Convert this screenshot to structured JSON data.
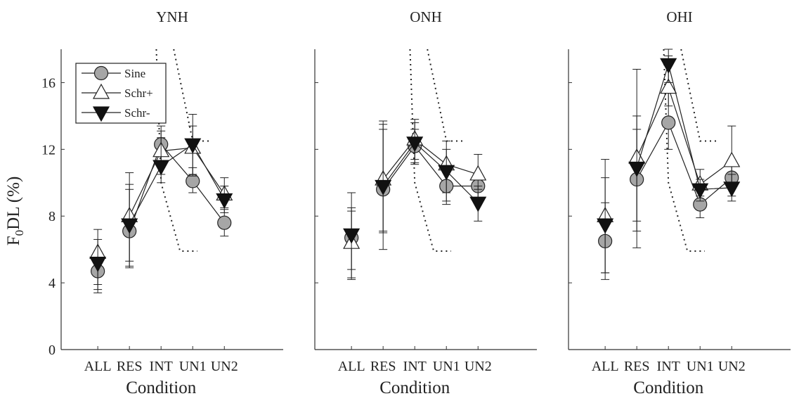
{
  "figure": {
    "ylabel_main": "F",
    "ylabel_sub": "0",
    "ylabel_rest": "DL  (%)"
  },
  "chart_data": [
    {
      "type": "line",
      "title": "YNH",
      "xlabel": "Condition",
      "ylabel": "F0DL (%)",
      "categories": [
        "ALL",
        "RES",
        "INT",
        "UN1",
        "UN2"
      ],
      "ylim": [
        0,
        18
      ],
      "yticks": [
        0,
        4,
        8,
        12,
        16
      ],
      "legend": {
        "position": "top-left",
        "entries": [
          "Sine",
          "Schr+",
          "Schr-"
        ]
      },
      "series": [
        {
          "name": "Sine",
          "marker": "circle",
          "values": [
            4.7,
            7.1,
            12.3,
            10.1,
            7.6
          ],
          "err_low": [
            3.6,
            5.0,
            11.2,
            9.4,
            6.8
          ],
          "err_high": [
            5.9,
            9.6,
            13.4,
            10.9,
            8.4
          ]
        },
        {
          "name": "Schr+",
          "marker": "triangle-up",
          "values": [
            5.8,
            8.0,
            11.9,
            12.1,
            9.3
          ],
          "err_low": [
            3.9,
            5.3,
            10.5,
            10.4,
            8.5
          ],
          "err_high": [
            7.2,
            10.6,
            13.1,
            14.1,
            10.3
          ]
        },
        {
          "name": "Schr-",
          "marker": "triangle-down",
          "values": [
            5.2,
            7.5,
            11.0,
            12.3,
            9.0
          ],
          "err_low": [
            3.4,
            4.9,
            10.0,
            10.5,
            8.2
          ],
          "err_high": [
            6.6,
            9.9,
            12.7,
            13.4,
            9.8
          ]
        }
      ],
      "dotted_lines": [
        [
          [
            2.85,
            18
          ],
          [
            3.0,
            10.0
          ],
          [
            3.6,
            5.9
          ],
          [
            4.15,
            5.9
          ]
        ],
        [
          [
            3.4,
            18
          ],
          [
            4.0,
            12.5
          ],
          [
            4.6,
            12.5
          ]
        ]
      ]
    },
    {
      "type": "line",
      "title": "ONH",
      "xlabel": "Condition",
      "ylabel": "",
      "categories": [
        "ALL",
        "RES",
        "INT",
        "UN1",
        "UN2"
      ],
      "ylim": [
        0,
        18
      ],
      "yticks": [
        0,
        4,
        8,
        12,
        16
      ],
      "series": [
        {
          "name": "Sine",
          "marker": "circle",
          "values": [
            6.7,
            9.6,
            12.2,
            9.8,
            9.8
          ],
          "err_low": [
            4.2,
            6.0,
            11.1,
            8.7,
            9.1
          ],
          "err_high": [
            8.5,
            13.5,
            13.2,
            11.0,
            10.4
          ]
        },
        {
          "name": "Schr+",
          "marker": "triangle-up",
          "values": [
            6.4,
            10.2,
            12.6,
            11.1,
            10.5
          ],
          "err_low": [
            4.3,
            7.1,
            11.4,
            9.4,
            9.6
          ],
          "err_high": [
            8.3,
            13.7,
            13.8,
            12.5,
            11.7
          ]
        },
        {
          "name": "Schr-",
          "marker": "triangle-down",
          "values": [
            6.9,
            9.8,
            12.4,
            10.7,
            8.8
          ],
          "err_low": [
            4.8,
            7.0,
            11.2,
            8.9,
            7.7
          ],
          "err_high": [
            9.4,
            13.2,
            13.6,
            12.0,
            9.8
          ]
        }
      ],
      "dotted_lines": [
        [
          [
            2.85,
            18
          ],
          [
            3.0,
            10.0
          ],
          [
            3.6,
            5.9
          ],
          [
            4.15,
            5.9
          ]
        ],
        [
          [
            3.4,
            18
          ],
          [
            4.0,
            12.5
          ],
          [
            4.6,
            12.5
          ]
        ]
      ]
    },
    {
      "type": "line",
      "title": "OHI",
      "xlabel": "Condition",
      "ylabel": "",
      "categories": [
        "ALL",
        "RES",
        "INT",
        "UN1",
        "UN2"
      ],
      "ylim": [
        0,
        18
      ],
      "yticks": [
        0,
        4,
        8,
        12,
        16
      ],
      "series": [
        {
          "name": "Sine",
          "marker": "circle",
          "values": [
            6.5,
            10.2,
            13.6,
            8.7,
            10.3
          ],
          "err_low": [
            4.2,
            6.1,
            12.0,
            7.9,
            9.2
          ],
          "err_high": [
            8.8,
            14.0,
            15.4,
            9.6,
            11.2
          ]
        },
        {
          "name": "Schr+",
          "marker": "triangle-up",
          "values": [
            8.0,
            11.5,
            15.7,
            9.9,
            11.3
          ],
          "err_low": [
            4.6,
            7.7,
            14.6,
            9.2,
            10.0
          ],
          "err_high": [
            11.4,
            16.8,
            17.6,
            10.8,
            13.4
          ]
        },
        {
          "name": "Schr-",
          "marker": "triangle-down",
          "values": [
            7.5,
            10.9,
            17.1,
            9.6,
            9.7
          ],
          "err_low": [
            4.6,
            7.1,
            16.0,
            8.9,
            8.9
          ],
          "err_high": [
            10.3,
            13.2,
            18.0,
            10.2,
            10.5
          ]
        }
      ],
      "dotted_lines": [
        [
          [
            2.85,
            18
          ],
          [
            3.0,
            10.0
          ],
          [
            3.6,
            5.9
          ],
          [
            4.15,
            5.9
          ]
        ],
        [
          [
            3.4,
            18
          ],
          [
            4.0,
            12.5
          ],
          [
            4.6,
            12.5
          ]
        ]
      ]
    }
  ]
}
